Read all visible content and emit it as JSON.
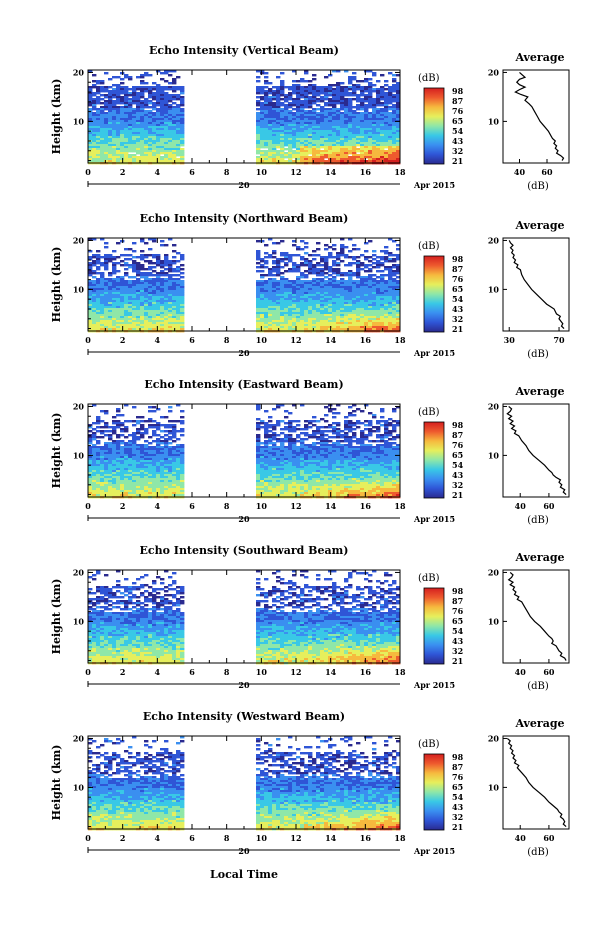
{
  "figure": {
    "xlabel": "Local Time",
    "date_label": "Apr 2015",
    "date_marker": "20"
  },
  "colorbar": {
    "unit_label": "(dB)",
    "colors": [
      "#2a2a8f",
      "#2f55d6",
      "#3a8ff0",
      "#39c8e6",
      "#8fe7a8",
      "#e6ef5c",
      "#f6b93e",
      "#ee5a2e",
      "#d51f1f"
    ]
  },
  "profile_defaults": {
    "title": "Average",
    "xlabel": "(dB)"
  },
  "chart_data": [
    {
      "type": "heatmap",
      "title": "Echo Intensity (Vertical Beam)",
      "ylabel": "Height (km)",
      "xlim": [
        0,
        18
      ],
      "ylim": [
        1.5,
        20.5
      ],
      "xticks": [
        "0",
        "2",
        "4",
        "6",
        "8",
        "10",
        "12",
        "14",
        "16",
        "18"
      ],
      "yticks": [
        20,
        10
      ],
      "gap": [
        5.5,
        9.5
      ],
      "colorbar_ticks": [
        "98",
        "87",
        "76",
        "65",
        "54",
        "43",
        "32",
        "21"
      ],
      "profile": {
        "xticks": [
          "40",
          "60"
        ],
        "xlim": [
          28,
          76
        ],
        "yticks": [
          20,
          10
        ],
        "points": [
          [
            40,
            20
          ],
          [
            42,
            19.5
          ],
          [
            44,
            19
          ],
          [
            40,
            18.6
          ],
          [
            38,
            18
          ],
          [
            40,
            17.5
          ],
          [
            44,
            17
          ],
          [
            40,
            16.5
          ],
          [
            37,
            16
          ],
          [
            41,
            15.5
          ],
          [
            46,
            15
          ],
          [
            44,
            14.3
          ],
          [
            47,
            13.6
          ],
          [
            49,
            13
          ],
          [
            51,
            12
          ],
          [
            53,
            11
          ],
          [
            55,
            10
          ],
          [
            58,
            9
          ],
          [
            61,
            8
          ],
          [
            63,
            7
          ],
          [
            64,
            6.5
          ],
          [
            66,
            6
          ],
          [
            65,
            5.5
          ],
          [
            67,
            5
          ],
          [
            66,
            4.5
          ],
          [
            68,
            4
          ],
          [
            67,
            3.5
          ],
          [
            70,
            3
          ],
          [
            72,
            2.5
          ],
          [
            71,
            2
          ]
        ]
      }
    },
    {
      "type": "heatmap",
      "title": "Echo Intensity (Northward Beam)",
      "ylabel": "Height (km)",
      "xlim": [
        0,
        18
      ],
      "ylim": [
        1.5,
        20.5
      ],
      "xticks": [
        "0",
        "2",
        "4",
        "6",
        "8",
        "10",
        "12",
        "14",
        "16",
        "18"
      ],
      "yticks": [
        20,
        10
      ],
      "gap": [
        5.5,
        9.5
      ],
      "colorbar_ticks": [
        "98",
        "87",
        "76",
        "65",
        "54",
        "43",
        "32",
        "21"
      ],
      "profile": {
        "xticks": [
          "30",
          "70"
        ],
        "xlim": [
          25,
          78
        ],
        "yticks": [
          20,
          10
        ],
        "points": [
          [
            30,
            20
          ],
          [
            31,
            19.5
          ],
          [
            33,
            19
          ],
          [
            31,
            18.5
          ],
          [
            33,
            18
          ],
          [
            32,
            17.5
          ],
          [
            34,
            17
          ],
          [
            33,
            16.5
          ],
          [
            35,
            16
          ],
          [
            34,
            15.5
          ],
          [
            37,
            15
          ],
          [
            36,
            14.5
          ],
          [
            39,
            14
          ],
          [
            40,
            13
          ],
          [
            42,
            12
          ],
          [
            45,
            11
          ],
          [
            48,
            10
          ],
          [
            52,
            9
          ],
          [
            56,
            8
          ],
          [
            60,
            7
          ],
          [
            63,
            6.5
          ],
          [
            66,
            6
          ],
          [
            68,
            5
          ],
          [
            71,
            4.5
          ],
          [
            70,
            4
          ],
          [
            73,
            3
          ],
          [
            72,
            2.5
          ],
          [
            74,
            2
          ]
        ]
      }
    },
    {
      "type": "heatmap",
      "title": "Echo Intensity (Eastward Beam)",
      "ylabel": "Height (km)",
      "xlim": [
        0,
        18
      ],
      "ylim": [
        1.5,
        20.5
      ],
      "xticks": [
        "0",
        "2",
        "4",
        "6",
        "8",
        "10",
        "12",
        "14",
        "16",
        "18"
      ],
      "yticks": [
        20,
        10
      ],
      "gap": [
        5.5,
        9.5
      ],
      "colorbar_ticks": [
        "98",
        "87",
        "76",
        "65",
        "54",
        "43",
        "32",
        "21"
      ],
      "profile": {
        "xticks": [
          "40",
          "60"
        ],
        "xlim": [
          28,
          74
        ],
        "yticks": [
          20,
          10
        ],
        "points": [
          [
            32,
            20
          ],
          [
            34,
            19.5
          ],
          [
            33,
            19
          ],
          [
            31,
            18.5
          ],
          [
            34,
            18
          ],
          [
            32,
            17.5
          ],
          [
            35,
            17
          ],
          [
            33,
            16.5
          ],
          [
            36,
            16
          ],
          [
            34,
            15.5
          ],
          [
            37,
            15
          ],
          [
            36,
            14.5
          ],
          [
            39,
            14
          ],
          [
            41,
            13
          ],
          [
            44,
            12
          ],
          [
            46,
            11
          ],
          [
            49,
            10
          ],
          [
            53,
            9
          ],
          [
            57,
            8
          ],
          [
            60,
            7
          ],
          [
            62,
            6.5
          ],
          [
            63,
            6
          ],
          [
            65,
            5.5
          ],
          [
            68,
            5
          ],
          [
            67,
            4.5
          ],
          [
            69,
            4
          ],
          [
            68,
            3.5
          ],
          [
            71,
            3
          ],
          [
            70,
            2.5
          ],
          [
            72,
            2
          ]
        ]
      }
    },
    {
      "type": "heatmap",
      "title": "Echo Intensity (Southward Beam)",
      "ylabel": "Height (km)",
      "xlim": [
        0,
        18
      ],
      "ylim": [
        1.5,
        20.5
      ],
      "xticks": [
        "0",
        "2",
        "4",
        "6",
        "8",
        "10",
        "12",
        "14",
        "16",
        "18"
      ],
      "yticks": [
        20,
        10
      ],
      "gap": [
        5.5,
        9.5
      ],
      "colorbar_ticks": [
        "98",
        "87",
        "76",
        "65",
        "54",
        "43",
        "32",
        "21"
      ],
      "profile": {
        "xticks": [
          "40",
          "60"
        ],
        "xlim": [
          28,
          74
        ],
        "yticks": [
          20,
          10
        ],
        "points": [
          [
            33,
            20
          ],
          [
            35,
            19.5
          ],
          [
            34,
            19
          ],
          [
            32,
            18.5
          ],
          [
            35,
            18
          ],
          [
            33,
            17.5
          ],
          [
            36,
            17
          ],
          [
            35,
            16.5
          ],
          [
            37,
            16
          ],
          [
            36,
            15.5
          ],
          [
            39,
            15
          ],
          [
            38,
            14.5
          ],
          [
            41,
            14
          ],
          [
            43,
            13
          ],
          [
            45,
            12
          ],
          [
            47,
            11
          ],
          [
            50,
            10
          ],
          [
            54,
            9
          ],
          [
            57,
            8
          ],
          [
            60,
            7
          ],
          [
            62,
            6.5
          ],
          [
            63,
            6
          ],
          [
            62,
            5.5
          ],
          [
            65,
            5
          ],
          [
            66,
            4.5
          ],
          [
            67,
            4
          ],
          [
            69,
            3.5
          ],
          [
            68,
            3
          ],
          [
            71,
            2.5
          ],
          [
            72,
            2
          ]
        ]
      }
    },
    {
      "type": "heatmap",
      "title": "Echo Intensity (Westward Beam)",
      "ylabel": "Height (km)",
      "xlim": [
        0,
        18
      ],
      "ylim": [
        1.5,
        20.5
      ],
      "xticks": [
        "0",
        "2",
        "4",
        "6",
        "8",
        "10",
        "12",
        "14",
        "16",
        "18"
      ],
      "yticks": [
        20,
        10
      ],
      "gap": [
        5.5,
        9.5
      ],
      "colorbar_ticks": [
        "98",
        "87",
        "76",
        "65",
        "54",
        "43",
        "32",
        "21"
      ],
      "profile": {
        "xticks": [
          "40",
          "60"
        ],
        "xlim": [
          28,
          74
        ],
        "yticks": [
          20,
          10
        ],
        "points": [
          [
            31,
            20
          ],
          [
            33,
            19.5
          ],
          [
            32,
            19
          ],
          [
            34,
            18.5
          ],
          [
            33,
            18
          ],
          [
            35,
            17.5
          ],
          [
            34,
            17
          ],
          [
            36,
            16.5
          ],
          [
            35,
            16
          ],
          [
            37,
            15.5
          ],
          [
            36,
            15
          ],
          [
            39,
            14.5
          ],
          [
            38,
            14
          ],
          [
            41,
            13
          ],
          [
            44,
            12
          ],
          [
            46,
            11
          ],
          [
            49,
            10
          ],
          [
            53,
            9
          ],
          [
            57,
            8
          ],
          [
            60,
            7
          ],
          [
            62,
            6.5
          ],
          [
            64,
            6
          ],
          [
            66,
            5.5
          ],
          [
            67,
            5
          ],
          [
            69,
            4.5
          ],
          [
            68,
            4
          ],
          [
            70,
            3.5
          ],
          [
            71,
            3
          ],
          [
            70,
            2.5
          ],
          [
            72,
            2
          ]
        ]
      }
    }
  ]
}
